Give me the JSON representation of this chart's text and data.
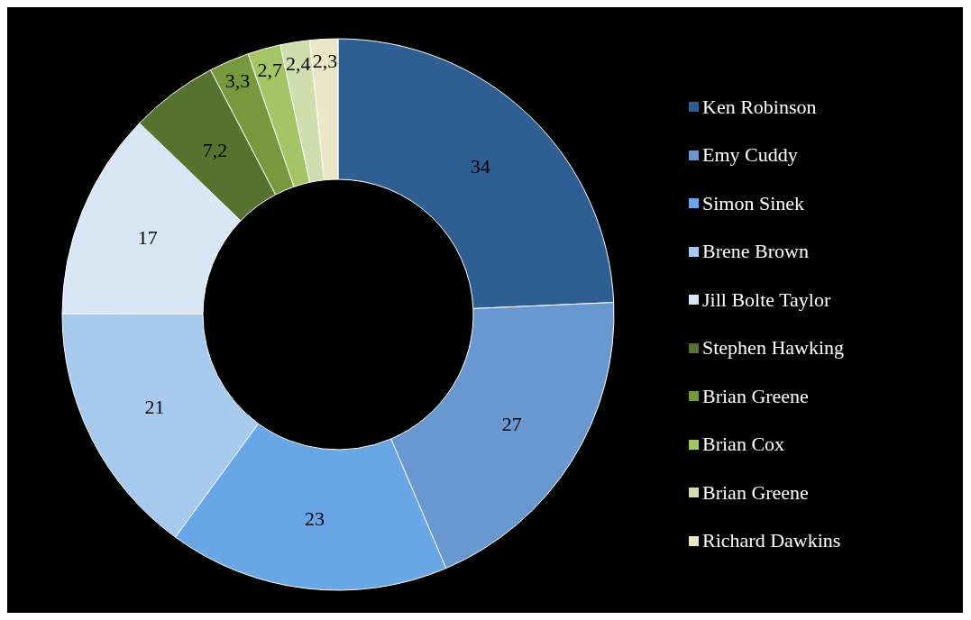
{
  "chart_data": {
    "type": "donut",
    "categories": [
      "Ken Robinson",
      "Emy Cuddy",
      "Simon Sinek",
      "Brene Brown",
      "Jill Bolte Taylor",
      "Stephen Hawking",
      "Brian Greene",
      "Brian Cox",
      "Brian Greene",
      "Richard Dawkins"
    ],
    "values": [
      34,
      27,
      23,
      21,
      17,
      7.2,
      3.3,
      2.7,
      2.4,
      2.3
    ],
    "value_labels": [
      "34",
      "27",
      "23",
      "21",
      "17",
      "7,2",
      "3,3",
      "2,7",
      "2,4",
      "2,3"
    ],
    "colors": [
      "#2f5f92",
      "#6898cf",
      "#68a6e6",
      "#a8c9ee",
      "#d8e6f6",
      "#56722f",
      "#76993d",
      "#a3c565",
      "#d0deae",
      "#ebe7c6"
    ],
    "legend": "right"
  }
}
